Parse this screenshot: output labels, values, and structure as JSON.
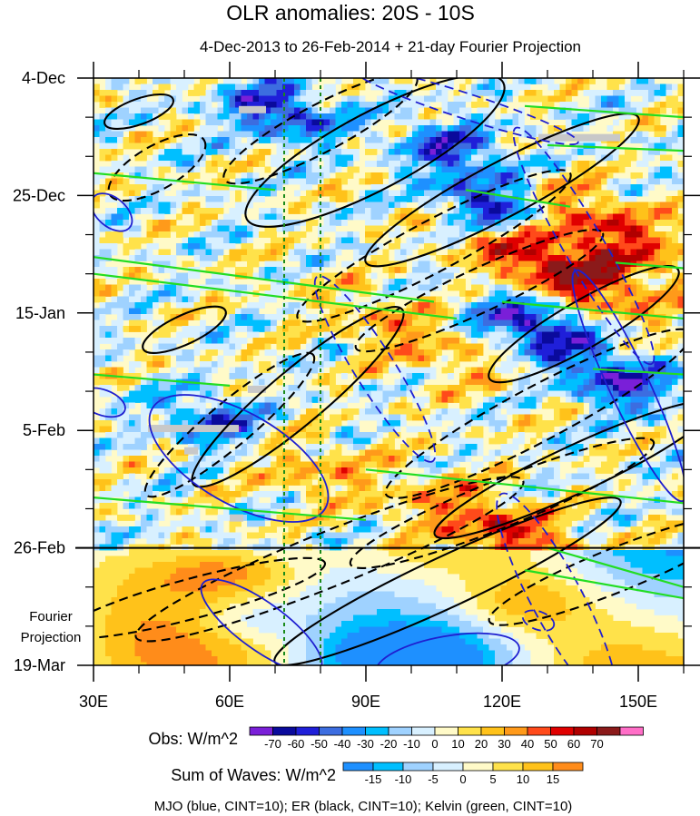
{
  "chart_data": {
    "type": "heatmap",
    "title": "OLR anomalies: 20S - 10S",
    "subtitle": "4-Dec-2013 to 26-Feb-2014 + 21-day Fourier Projection",
    "x_axis": {
      "range": [
        30,
        160
      ],
      "units": "longitude (degrees E)",
      "ticks": [
        {
          "value": 30,
          "label": "30E"
        },
        {
          "value": 60,
          "label": "60E"
        },
        {
          "value": 90,
          "label": "90E"
        },
        {
          "value": 120,
          "label": "120E"
        },
        {
          "value": 150,
          "label": "150E"
        }
      ]
    },
    "y_axis": {
      "range_days": [
        0,
        105
      ],
      "units": "days since 4-Dec-2013 (time increases downward)",
      "ticks": [
        {
          "day": 0,
          "label": "4-Dec"
        },
        {
          "day": 21,
          "label": "25-Dec"
        },
        {
          "day": 42,
          "label": "15-Jan"
        },
        {
          "day": 63,
          "label": "5-Feb"
        },
        {
          "day": 84,
          "label": "26-Feb"
        },
        {
          "day": 105,
          "label": "19-Mar"
        }
      ],
      "projection_label": [
        "Fourier",
        "Projection"
      ],
      "projection_start_day": 84
    },
    "reference_lines_lon": [
      72,
      80
    ],
    "obs_colorbar": {
      "label": "Obs: W/m^2",
      "levels": [
        -70,
        -60,
        -50,
        -40,
        -30,
        -20,
        -10,
        0,
        10,
        20,
        30,
        40,
        50,
        60,
        70
      ],
      "colors": [
        "#7a1fd8",
        "#0a0a9c",
        "#1f1fd9",
        "#3c6de0",
        "#1e90ff",
        "#00bfff",
        "#9fd2ff",
        "#d8f0ff",
        "#fffac8",
        "#ffe24a",
        "#ffc21a",
        "#ff9a1a",
        "#ff4a1a",
        "#e00000",
        "#b00000",
        "#8b1a1a",
        "#ff6ec7"
      ]
    },
    "waves_colorbar": {
      "label": "Sum of Waves: W/m^2",
      "levels": [
        -15,
        -10,
        -5,
        0,
        5,
        10,
        15
      ],
      "colors": [
        "#1e90ff",
        "#00bfff",
        "#9fd2ff",
        "#d8f0ff",
        "#fffac8",
        "#ffe24a",
        "#ffc21a",
        "#ff8c1a"
      ]
    },
    "contour_legend": "MJO (blue, CINT=10); ER (black, CINT=10); Kelvin (green, CINT=10)",
    "contour_colors": {
      "mjo": "#1f1fd0",
      "er": "#000000",
      "kelvin": "#22dd22"
    },
    "features": {
      "obs_negative_centers": [
        {
          "lon": 71,
          "day": 6,
          "value": -60
        },
        {
          "lon": 118,
          "day": 23,
          "value": -70
        },
        {
          "lon": 127,
          "day": 44,
          "value": -70
        },
        {
          "lon": 58,
          "day": 62,
          "value": -60
        },
        {
          "lon": 145,
          "day": 54,
          "value": -60
        },
        {
          "lon": 110,
          "day": 13,
          "value": -50
        }
      ],
      "obs_positive_centers": [
        {
          "lon": 132,
          "day": 34,
          "value": 70
        },
        {
          "lon": 143,
          "day": 27,
          "value": 50
        },
        {
          "lon": 120,
          "day": 81,
          "value": 50
        },
        {
          "lon": 100,
          "day": 46,
          "value": 30
        },
        {
          "lon": 73,
          "day": 68,
          "value": 30
        }
      ]
    }
  }
}
